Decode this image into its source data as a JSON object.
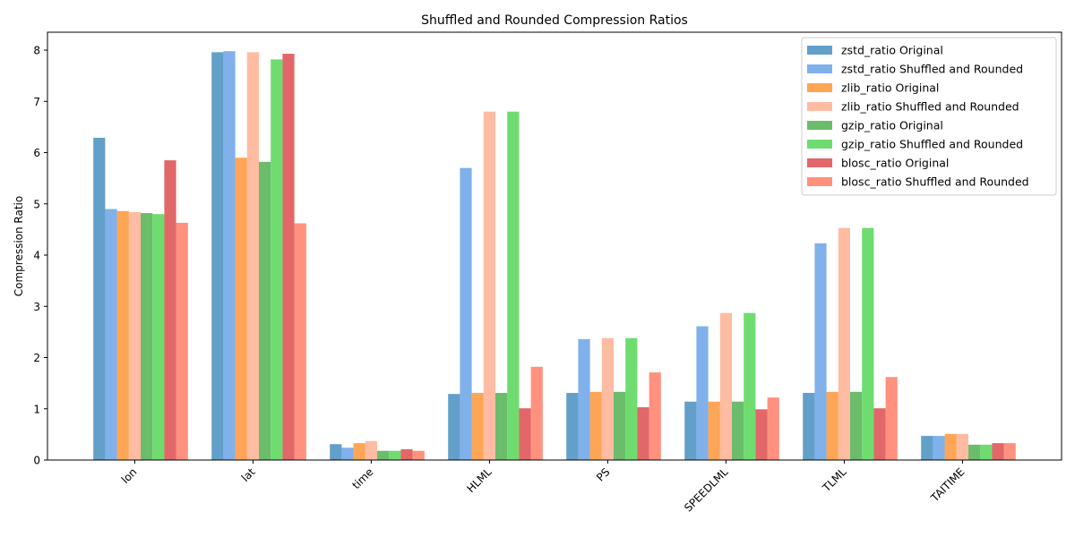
{
  "chart_data": {
    "type": "bar",
    "title": "Shuffled and Rounded Compression Ratios",
    "xlabel": "",
    "ylabel": "Compression Ratio",
    "categories": [
      "lon",
      "lat",
      "time",
      "HLML",
      "PS",
      "SPEEDLML",
      "TLML",
      "TAITIME"
    ],
    "ylim": [
      0,
      8.35
    ],
    "yticks": [
      0,
      1,
      2,
      3,
      4,
      5,
      6,
      7,
      8
    ],
    "grid": false,
    "legend_position": "top-right",
    "bar_alpha": 0.7,
    "series": [
      {
        "name": "zstd_ratio Original",
        "color": "#1f77b4",
        "values": [
          6.29,
          7.96,
          0.31,
          1.29,
          1.31,
          1.14,
          1.31,
          0.47
        ]
      },
      {
        "name": "zstd_ratio Shuffled and Rounded",
        "color": "#4a90e2",
        "values": [
          4.9,
          7.98,
          0.24,
          5.7,
          2.36,
          2.61,
          4.23,
          0.47
        ]
      },
      {
        "name": "zlib_ratio Original",
        "color": "#ff7f0e",
        "values": [
          4.86,
          5.9,
          0.33,
          1.31,
          1.33,
          1.14,
          1.33,
          0.51
        ]
      },
      {
        "name": "zlib_ratio Shuffled and Rounded",
        "color": "#ffa07a",
        "values": [
          4.84,
          7.96,
          0.37,
          6.8,
          2.38,
          2.87,
          4.53,
          0.51
        ]
      },
      {
        "name": "gzip_ratio Original",
        "color": "#2ca02c",
        "values": [
          4.82,
          5.82,
          0.18,
          1.31,
          1.33,
          1.14,
          1.33,
          0.3
        ]
      },
      {
        "name": "gzip_ratio Shuffled and Rounded",
        "color": "#32cd32",
        "values": [
          4.8,
          7.82,
          0.18,
          6.8,
          2.38,
          2.87,
          4.53,
          0.3
        ]
      },
      {
        "name": "blosc_ratio Original",
        "color": "#d62728",
        "values": [
          5.85,
          7.93,
          0.21,
          1.01,
          1.03,
          0.99,
          1.01,
          0.33
        ]
      },
      {
        "name": "blosc_ratio Shuffled and Rounded",
        "color": "#ff6347",
        "values": [
          4.63,
          4.62,
          0.18,
          1.82,
          1.71,
          1.22,
          1.62,
          0.33
        ]
      }
    ]
  }
}
